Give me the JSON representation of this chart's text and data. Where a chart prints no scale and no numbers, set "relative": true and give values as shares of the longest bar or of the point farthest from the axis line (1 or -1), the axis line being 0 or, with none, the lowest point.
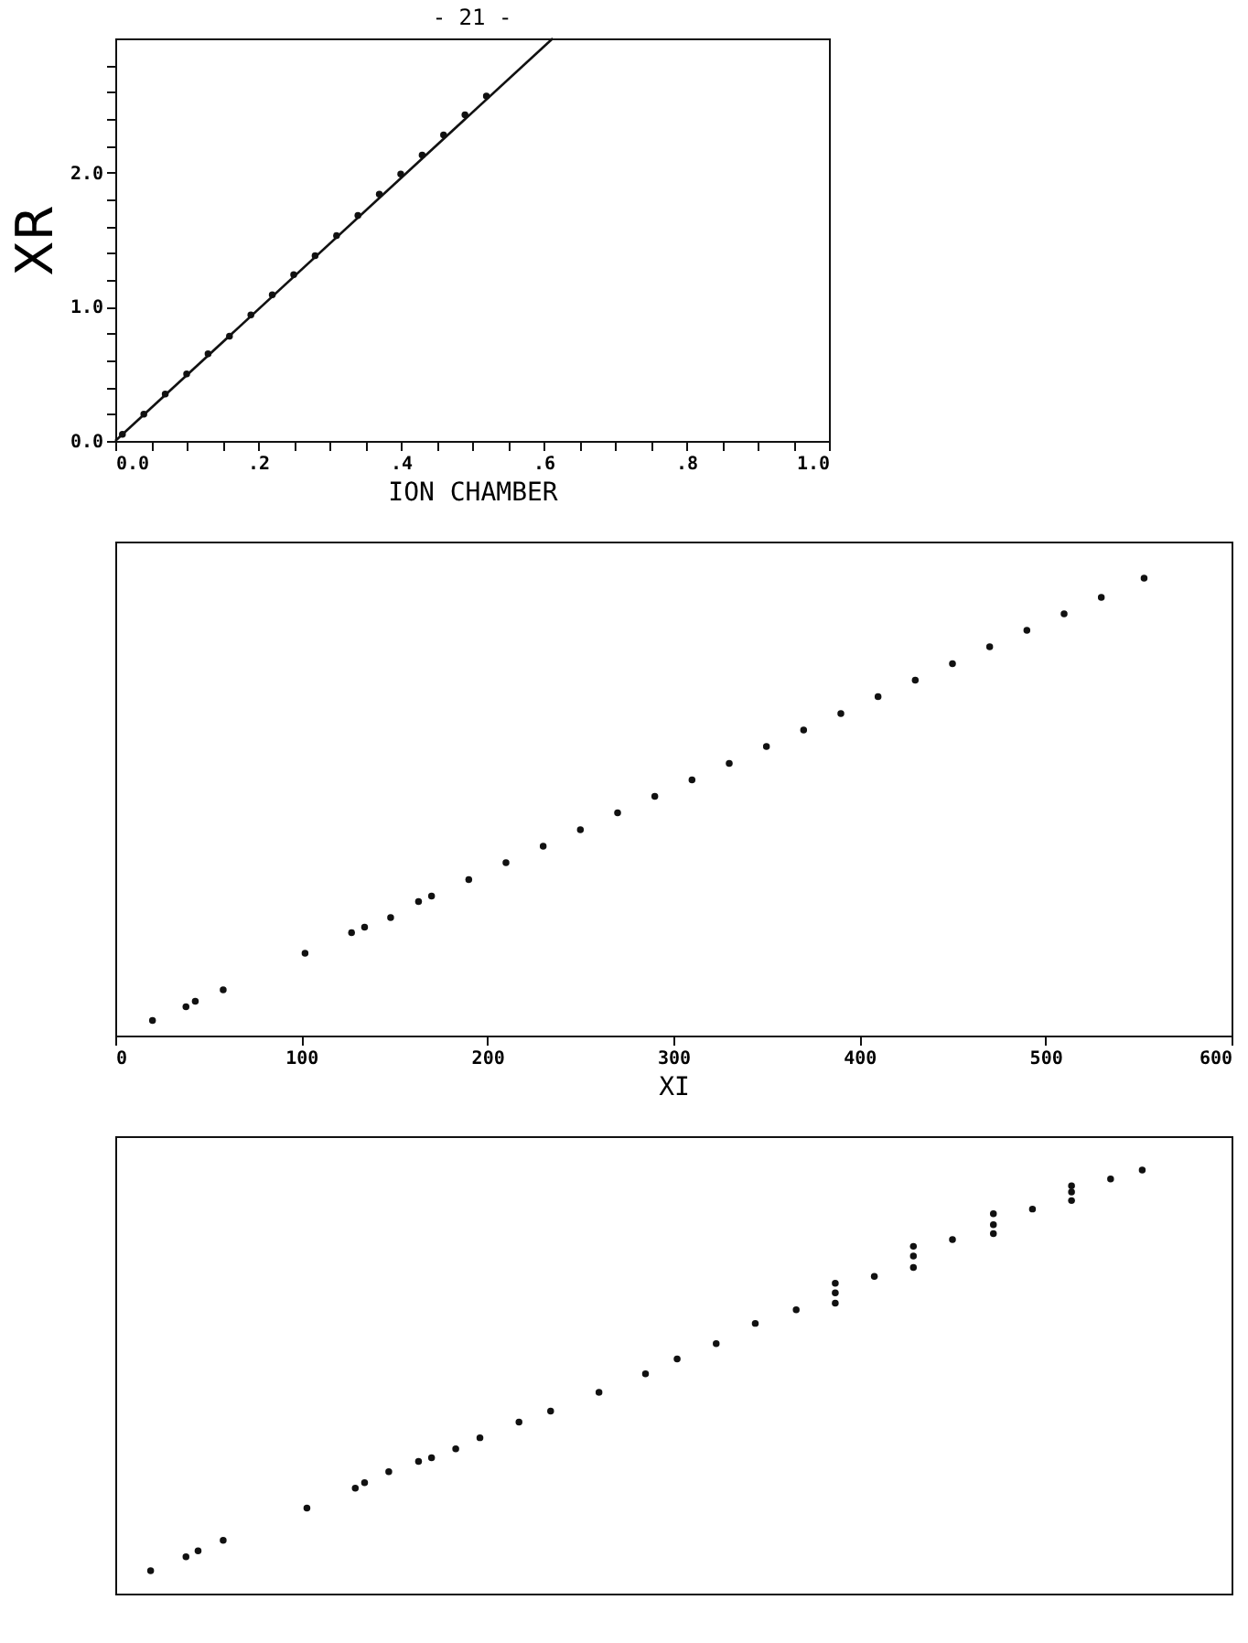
{
  "chart_data": [
    {
      "type": "scatter",
      "annotations": [
        "- 21 -"
      ],
      "xlabel": "ION CHAMBER",
      "ylabel": "XR",
      "xlim": [
        0,
        1.0
      ],
      "ylim": [
        0,
        3.0
      ],
      "xticks": [
        {
          "value": 0,
          "label": "0.0"
        },
        {
          "value": 0.05,
          "label": null
        },
        {
          "value": 0.1,
          "label": null
        },
        {
          "value": 0.15,
          "label": null
        },
        {
          "value": 0.2,
          "label": ".2"
        },
        {
          "value": 0.25,
          "label": null
        },
        {
          "value": 0.3,
          "label": null
        },
        {
          "value": 0.35,
          "label": null
        },
        {
          "value": 0.4,
          "label": ".4"
        },
        {
          "value": 0.45,
          "label": null
        },
        {
          "value": 0.5,
          "label": null
        },
        {
          "value": 0.55,
          "label": null
        },
        {
          "value": 0.6,
          "label": ".6"
        },
        {
          "value": 0.65,
          "label": null
        },
        {
          "value": 0.7,
          "label": null
        },
        {
          "value": 0.75,
          "label": null
        },
        {
          "value": 0.8,
          "label": ".8"
        },
        {
          "value": 0.85,
          "label": null
        },
        {
          "value": 0.9,
          "label": null
        },
        {
          "value": 0.95,
          "label": null
        },
        {
          "value": 1.0,
          "label": "1.0"
        }
      ],
      "yticks": [
        {
          "value": 0,
          "label": "0.0"
        },
        {
          "value": 0.2,
          "label": null
        },
        {
          "value": 0.4,
          "label": null
        },
        {
          "value": 0.6,
          "label": null
        },
        {
          "value": 0.8,
          "label": null
        },
        {
          "value": 1.0,
          "label": "1.0"
        },
        {
          "value": 1.2,
          "label": null
        },
        {
          "value": 1.4,
          "label": null
        },
        {
          "value": 1.6,
          "label": null
        },
        {
          "value": 1.8,
          "label": null
        },
        {
          "value": 2.0,
          "label": "2.0"
        },
        {
          "value": 2.2,
          "label": null
        },
        {
          "value": 2.4,
          "label": null
        },
        {
          "value": 2.6,
          "label": null
        },
        {
          "value": 2.8,
          "label": null
        }
      ],
      "marker": "circle",
      "grid": false,
      "series": [
        {
          "color": "#111111",
          "x": [
            0.01,
            0.04,
            0.07,
            0.1,
            0.13,
            0.16,
            0.19,
            0.22,
            0.25,
            0.28,
            0.31,
            0.34,
            0.37,
            0.4,
            0.43,
            0.46,
            0.49,
            0.52
          ],
          "values": [
            0.05,
            0.2,
            0.35,
            0.5,
            0.65,
            0.78,
            0.94,
            1.09,
            1.24,
            1.38,
            1.53,
            1.68,
            1.84,
            1.99,
            2.13,
            2.28,
            2.43,
            2.57
          ]
        },
        {
          "type": "line",
          "marker": "none",
          "color": "#111111",
          "x": [
            0,
            0.613
          ],
          "values": [
            0,
            3.0
          ]
        }
      ]
    },
    {
      "type": "scatter",
      "xlabel": "XI",
      "xlim": [
        0,
        600
      ],
      "xticks": [
        0,
        100,
        200,
        300,
        400,
        500,
        600
      ],
      "relative": true,
      "tick_labels": "x",
      "marker": "circle",
      "grid": false,
      "series": [
        {
          "color": "#111111",
          "x": [
            20,
            38,
            43,
            58,
            102,
            127,
            134,
            148,
            163,
            170,
            190,
            210,
            230,
            250,
            270,
            290,
            310,
            330,
            350,
            370,
            390,
            410,
            430,
            450,
            470,
            490,
            510,
            530,
            553
          ],
          "values": [
            0.033,
            0.063,
            0.075,
            0.1,
            0.18,
            0.225,
            0.237,
            0.258,
            0.293,
            0.305,
            0.341,
            0.378,
            0.414,
            0.45,
            0.487,
            0.523,
            0.559,
            0.595,
            0.632,
            0.668,
            0.704,
            0.741,
            0.777,
            0.813,
            0.85,
            0.886,
            0.922,
            0.958,
            1.0
          ]
        }
      ]
    },
    {
      "type": "scatter",
      "xlim": [
        0,
        600
      ],
      "relative": true,
      "tick_labels": false,
      "marker": "circle",
      "grid": false,
      "series": [
        {
          "color": "#111111",
          "x": [
            19,
            38,
            44.5,
            58,
            103,
            129,
            134,
            147,
            163,
            170,
            183,
            196,
            217,
            234,
            260,
            285,
            302,
            323,
            344,
            366,
            387,
            408,
            429,
            450,
            472,
            493,
            514,
            535,
            552,
            387,
            387,
            429,
            429,
            472,
            472,
            514,
            514
          ],
          "values": [
            0.054,
            0.087,
            0.101,
            0.126,
            0.202,
            0.249,
            0.262,
            0.288,
            0.312,
            0.321,
            0.342,
            0.368,
            0.405,
            0.431,
            0.475,
            0.519,
            0.554,
            0.59,
            0.638,
            0.67,
            0.71,
            0.749,
            0.797,
            0.836,
            0.871,
            0.908,
            0.948,
            0.979,
            1.0,
            0.733,
            0.686,
            0.82,
            0.77,
            0.897,
            0.85,
            0.963,
            0.928
          ]
        }
      ]
    }
  ]
}
